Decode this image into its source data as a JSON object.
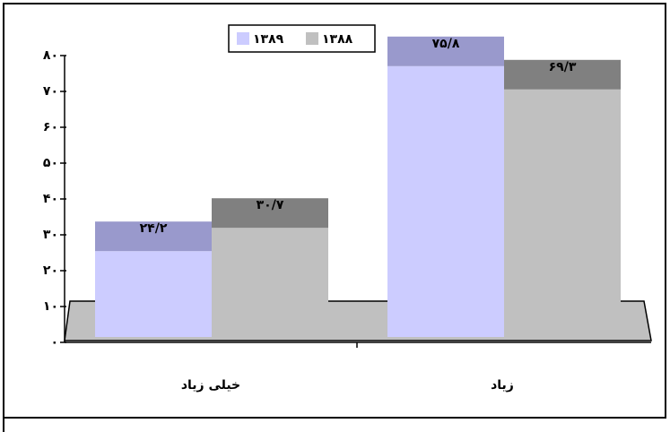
{
  "chart_data": {
    "type": "bar",
    "categories": [
      "خیلی زیاد",
      "زیاد"
    ],
    "series": [
      {
        "name": "۱۳۸۹",
        "color": "#ccccff",
        "top_color": "#9999cc",
        "values": [
          24.2,
          75.8
        ],
        "value_labels": [
          "۲۴/۲",
          "۷۵/۸"
        ]
      },
      {
        "name": "۱۳۸۸",
        "color": "#c0c0c0",
        "top_color": "#808080",
        "values": [
          30.7,
          69.3
        ],
        "value_labels": [
          "۳۰/۷",
          "۶۹/۳"
        ]
      }
    ],
    "ylim": [
      0,
      80
    ],
    "yticks": [
      {
        "value": 0,
        "label": "۰"
      },
      {
        "value": 10,
        "label": "۱۰"
      },
      {
        "value": 20,
        "label": "۲۰"
      },
      {
        "value": 30,
        "label": "۳۰"
      },
      {
        "value": 40,
        "label": "۴۰"
      },
      {
        "value": 50,
        "label": "۵۰"
      },
      {
        "value": 60,
        "label": "۶۰"
      },
      {
        "value": 70,
        "label": "۷۰"
      },
      {
        "value": 80,
        "label": "۸۰"
      }
    ],
    "legend": "top"
  }
}
